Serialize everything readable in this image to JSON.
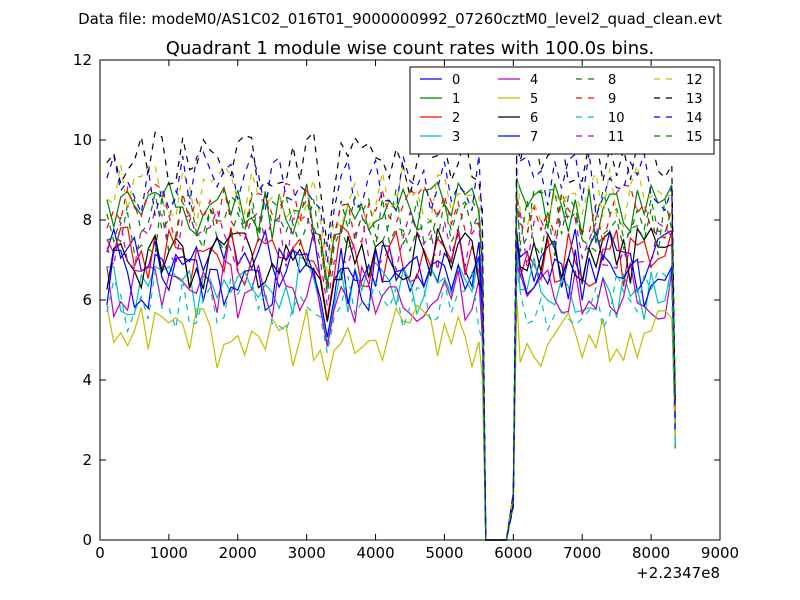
{
  "header": {
    "suptitle": "Data file: modeM0/AS1C02_016T01_9000000992_07260cztM0_level2_quad_clean.evt"
  },
  "chart_data": {
    "type": "line",
    "title": "Quadrant 1 module wise count rates with 100.0s bins.",
    "xlabel": "",
    "ylabel": "",
    "x_offset_label": "+2.2347e8",
    "xlim": [
      0,
      9000
    ],
    "ylim": [
      0,
      12
    ],
    "xticks": [
      0,
      1000,
      2000,
      3000,
      4000,
      5000,
      6000,
      7000,
      8000,
      9000
    ],
    "yticks": [
      0,
      2,
      4,
      6,
      8,
      10,
      12
    ],
    "grid": false,
    "legend": {
      "placement": "top-right",
      "columns": 4
    },
    "series": [
      {
        "name": "0",
        "color": "#0000ff",
        "style": "solid",
        "base": 7.0
      },
      {
        "name": "1",
        "color": "#008000",
        "style": "solid",
        "base": 8.2
      },
      {
        "name": "2",
        "color": "#ff0000",
        "style": "solid",
        "base": 7.1
      },
      {
        "name": "3",
        "color": "#00bfbf",
        "style": "solid",
        "base": 6.3
      },
      {
        "name": "4",
        "color": "#bf00bf",
        "style": "solid",
        "base": 6.2
      },
      {
        "name": "5",
        "color": "#bfbf00",
        "style": "solid",
        "base": 5.1
      },
      {
        "name": "6",
        "color": "#000000",
        "style": "solid",
        "base": 7.0
      },
      {
        "name": "7",
        "color": "#0000ff",
        "style": "solid",
        "base": 6.5
      },
      {
        "name": "8",
        "color": "#008000",
        "style": "dashed",
        "base": 8.0
      },
      {
        "name": "9",
        "color": "#ff0000",
        "style": "dashed",
        "base": 8.2
      },
      {
        "name": "10",
        "color": "#00bfbf",
        "style": "dashed",
        "base": 6.0
      },
      {
        "name": "11",
        "color": "#bf00bf",
        "style": "dashed",
        "base": 7.5
      },
      {
        "name": "12",
        "color": "#bfbf00",
        "style": "dashed",
        "base": 8.6
      },
      {
        "name": "13",
        "color": "#000000",
        "style": "dashed",
        "base": 9.4
      },
      {
        "name": "14",
        "color": "#0000ff",
        "style": "dashed",
        "base": 8.9
      },
      {
        "name": "15",
        "color": "#008000",
        "style": "dashed",
        "base": 7.9
      }
    ],
    "sampling": {
      "segment1_x": [
        100,
        5500
      ],
      "segment2_x": [
        6100,
        8300
      ],
      "gap_x": [
        5600,
        5950
      ],
      "step": 100,
      "gap_values": [
        {
          "x": 5550,
          "value": 5.8
        },
        {
          "x": 5600,
          "value": 0
        },
        {
          "x": 5900,
          "value": 0
        },
        {
          "x": 6000,
          "value": 1.0
        },
        {
          "x": 6050,
          "value": 9.0
        }
      ],
      "dip_x": 3300,
      "dip_factor": 0.78,
      "end_drop": [
        {
          "x": 8250,
          "value": 5.8
        },
        {
          "x": 8350,
          "value": 2.6
        }
      ]
    }
  }
}
